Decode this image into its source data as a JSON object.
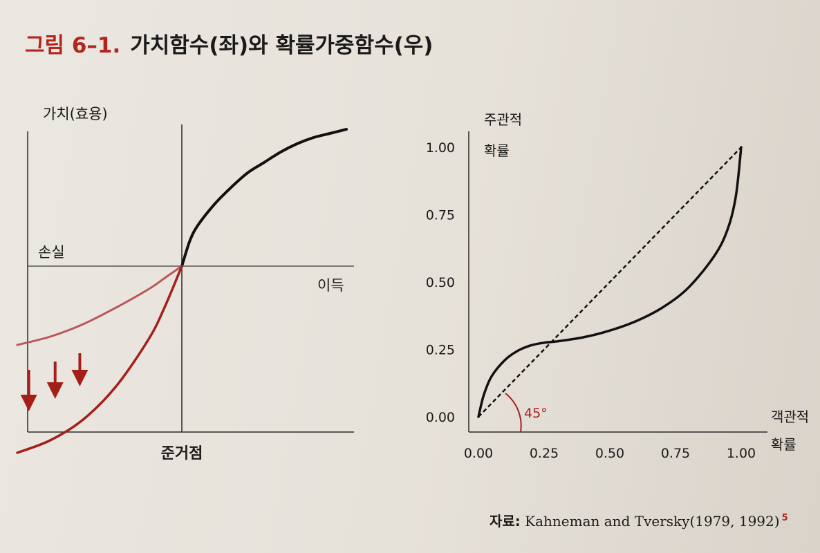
{
  "figure": {
    "number": "그림 6–1.",
    "title": "가치함수(좌)와 확률가중함수(우)"
  },
  "source": {
    "label": "자료:",
    "text": "Kahneman and Tversky(1979, 1992)",
    "footnote": "5"
  },
  "colors": {
    "black": "#111111",
    "red": "#a3201a",
    "light_red": "#b9575a",
    "axis": "#2a2a2a",
    "title_red": "#b3261e"
  },
  "chart_data": [
    {
      "type": "line",
      "title": "가치함수",
      "ylabel": "가치(효용)",
      "xlabel": "준거점",
      "gain_label": "이득",
      "loss_label": "손실",
      "reference_point": [
        0,
        0
      ],
      "xlim": [
        -1,
        1
      ],
      "ylim": [
        -1,
        1
      ],
      "grid": false,
      "series": [
        {
          "style": "black",
          "x": [
            0.0,
            0.05,
            0.1,
            0.2,
            0.3,
            0.4,
            0.5,
            0.6,
            0.7,
            0.8,
            0.9,
            1.0
          ],
          "y": [
            0.0,
            0.125,
            0.2,
            0.3,
            0.38,
            0.45,
            0.5,
            0.55,
            0.59,
            0.62,
            0.64,
            0.66
          ]
        },
        {
          "style": "light_red",
          "x": [
            -1.0,
            -0.8,
            -0.6,
            -0.4,
            -0.2,
            -0.1,
            0.0
          ],
          "y": [
            -0.38,
            -0.34,
            -0.28,
            -0.2,
            -0.11,
            -0.055,
            0.0
          ]
        },
        {
          "style": "red",
          "x": [
            -1.0,
            -0.8,
            -0.6,
            -0.4,
            -0.2,
            -0.1,
            0.0
          ],
          "y": [
            -0.9,
            -0.84,
            -0.74,
            -0.58,
            -0.35,
            -0.19,
            0.0
          ]
        }
      ],
      "annotations": [
        {
          "type": "arrow-down",
          "x": -0.93,
          "y_from": -0.5,
          "y_to": -0.68
        },
        {
          "type": "arrow-down",
          "x": -0.77,
          "y_from": -0.46,
          "y_to": -0.62
        },
        {
          "type": "arrow-down",
          "x": -0.62,
          "y_from": -0.42,
          "y_to": -0.56
        }
      ]
    },
    {
      "type": "line",
      "title": "확률가중함수",
      "ylabel": "주관적 확률",
      "xlabel": "객관적 확률",
      "xlim": [
        0,
        1
      ],
      "ylim": [
        0,
        1
      ],
      "grid": false,
      "x_ticks": [
        "0.00",
        "0.25",
        "0.50",
        "0.75",
        "1.00"
      ],
      "y_ticks": [
        "0.00",
        "0.25",
        "0.50",
        "0.75",
        "1.00"
      ],
      "angle_label": "45°",
      "series": [
        {
          "style": "dashed",
          "x": [
            0.0,
            1.0
          ],
          "y": [
            0.0,
            1.0
          ]
        },
        {
          "style": "solid",
          "x": [
            0.0,
            0.02,
            0.05,
            0.1,
            0.15,
            0.2,
            0.25,
            0.3,
            0.4,
            0.5,
            0.6,
            0.7,
            0.8,
            0.9,
            0.95,
            0.98,
            1.0
          ],
          "y": [
            0.0,
            0.08,
            0.15,
            0.21,
            0.245,
            0.265,
            0.275,
            0.28,
            0.295,
            0.32,
            0.355,
            0.405,
            0.48,
            0.6,
            0.7,
            0.82,
            1.0
          ]
        }
      ]
    }
  ]
}
